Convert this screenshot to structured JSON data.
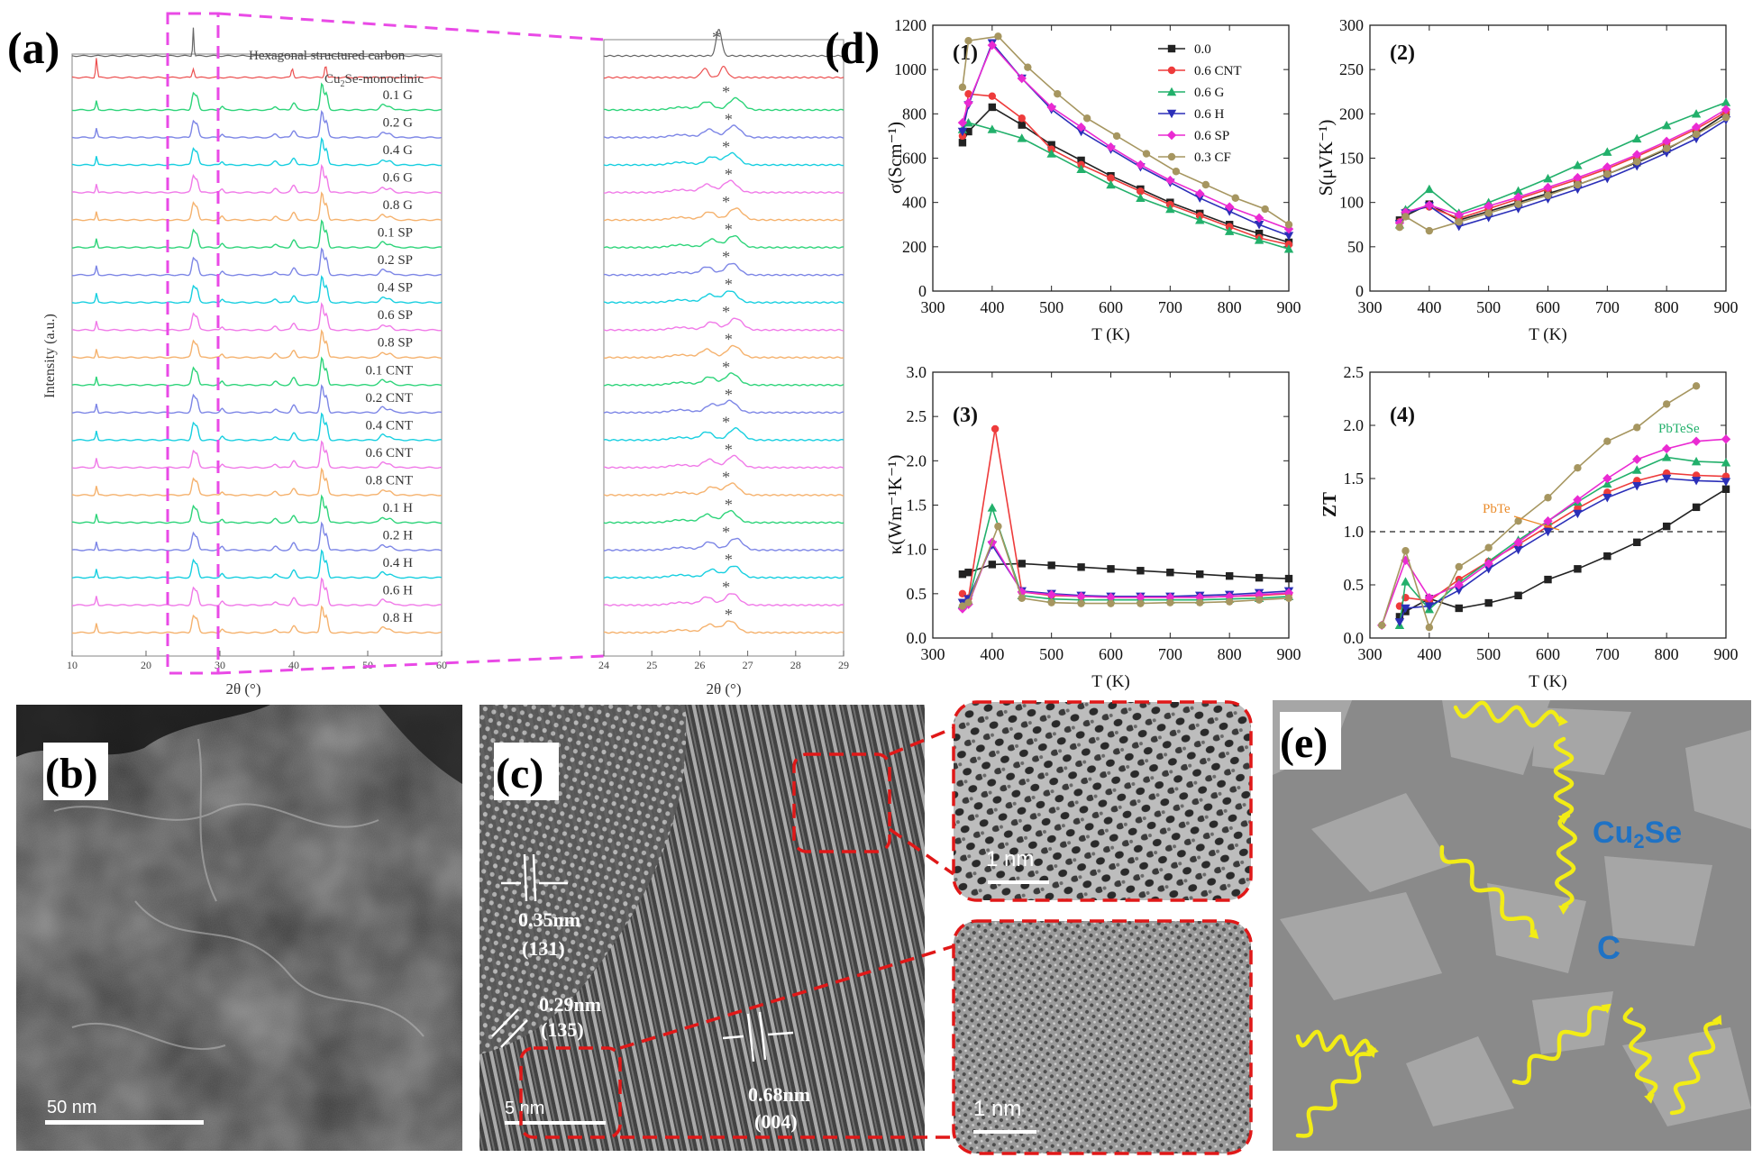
{
  "panel_labels": {
    "a": "(a)",
    "b": "(b)",
    "c": "(c)",
    "d": "(d)",
    "e": "(e)"
  },
  "colors": {
    "G": "#2ed47a",
    "blue": "#7d86e6",
    "cyan": "#18cfe0",
    "pink": "#f07ae8",
    "orange": "#f5b26e",
    "grey": "#8c8c8c",
    "red": "#ec5050",
    "s00": "#222222",
    "sCNT": "#ee3b3b",
    "sG": "#22b06b",
    "sH": "#2b2fb8",
    "sSP": "#ea2ad2",
    "sCF": "#a69660",
    "dash": "#e94ae6",
    "redbox": "#e01818",
    "arrow": "#f2ec16",
    "cu2se": "#1f72c4"
  },
  "xrd": {
    "ylabel": "Intensity (a.u.)",
    "xlabel": "2θ (°)",
    "xlabel_zoom": "2θ (°)",
    "xticks_full": [
      "10",
      "20",
      "30",
      "40",
      "50",
      "60"
    ],
    "xticks_zoom": [
      "24",
      "25",
      "26",
      "27",
      "28",
      "29"
    ],
    "ref_carbon": "Hexagonal structured carbon",
    "ref_cu2se_main": "Cu",
    "ref_cu2se_sub": "2",
    "ref_cu2se_tail": "Se-monoclinic",
    "samples": [
      {
        "label": "0.1 G",
        "color": "G"
      },
      {
        "label": "0.2 G",
        "color": "blue"
      },
      {
        "label": "0.4 G",
        "color": "cyan"
      },
      {
        "label": "0.6 G",
        "color": "pink"
      },
      {
        "label": "0.8 G",
        "color": "orange"
      },
      {
        "label": "0.1 SP",
        "color": "G"
      },
      {
        "label": "0.2 SP",
        "color": "blue"
      },
      {
        "label": "0.4 SP",
        "color": "cyan"
      },
      {
        "label": "0.6 SP",
        "color": "pink"
      },
      {
        "label": "0.8 SP",
        "color": "orange"
      },
      {
        "label": "0.1 CNT",
        "color": "G"
      },
      {
        "label": "0.2 CNT",
        "color": "blue"
      },
      {
        "label": "0.4 CNT",
        "color": "cyan"
      },
      {
        "label": "0.6 CNT",
        "color": "pink"
      },
      {
        "label": "0.8 CNT",
        "color": "orange"
      },
      {
        "label": "0.1 H",
        "color": "G"
      },
      {
        "label": "0.2 H",
        "color": "blue"
      },
      {
        "label": "0.4 H",
        "color": "cyan"
      },
      {
        "label": "0.6 H",
        "color": "pink"
      },
      {
        "label": "0.8 H",
        "color": "orange"
      }
    ],
    "star": "*"
  },
  "chart_data": [
    {
      "type": "line",
      "panel": "(1)",
      "xlabel": "T (K)",
      "ylabel": "σ(Scm⁻¹)",
      "xlim": [
        300,
        900
      ],
      "ylim": [
        0,
        1200
      ],
      "xticks": [
        300,
        400,
        500,
        600,
        700,
        800,
        900
      ],
      "yticks": [
        0,
        200,
        400,
        600,
        800,
        1000,
        1200
      ],
      "series": [
        {
          "name": "0.0",
          "color": "s00",
          "marker": "square",
          "x": [
            350,
            360,
            400,
            450,
            500,
            550,
            600,
            650,
            700,
            750,
            800,
            850,
            900
          ],
          "y": [
            670,
            720,
            830,
            750,
            660,
            590,
            520,
            460,
            400,
            350,
            300,
            260,
            220
          ]
        },
        {
          "name": "0.6 CNT",
          "color": "sCNT",
          "marker": "circle",
          "x": [
            350,
            360,
            400,
            450,
            500,
            550,
            600,
            650,
            700,
            750,
            800,
            850,
            900
          ],
          "y": [
            700,
            890,
            880,
            780,
            640,
            570,
            510,
            450,
            390,
            340,
            290,
            240,
            210
          ]
        },
        {
          "name": "0.6 G",
          "color": "sG",
          "marker": "triangle-up",
          "x": [
            350,
            360,
            400,
            450,
            500,
            550,
            600,
            650,
            700,
            750,
            800,
            850,
            900
          ],
          "y": [
            730,
            760,
            730,
            690,
            620,
            550,
            480,
            420,
            370,
            320,
            270,
            230,
            190
          ]
        },
        {
          "name": "0.6 H",
          "color": "sH",
          "marker": "triangle-down",
          "x": [
            350,
            360,
            400,
            450,
            500,
            550,
            600,
            650,
            700,
            750,
            800,
            850,
            900
          ],
          "y": [
            720,
            840,
            1120,
            960,
            820,
            720,
            640,
            560,
            490,
            420,
            360,
            300,
            250
          ]
        },
        {
          "name": "0.6 SP",
          "color": "sSP",
          "marker": "diamond",
          "x": [
            350,
            360,
            400,
            450,
            500,
            550,
            600,
            650,
            700,
            750,
            800,
            850,
            900
          ],
          "y": [
            760,
            850,
            1110,
            960,
            830,
            740,
            650,
            570,
            500,
            440,
            380,
            330,
            280
          ]
        },
        {
          "name": "0.3 CF",
          "color": "sCF",
          "marker": "circle",
          "x": [
            350,
            360,
            410,
            460,
            510,
            560,
            610,
            660,
            710,
            760,
            810,
            860,
            900
          ],
          "y": [
            920,
            1130,
            1150,
            1010,
            890,
            780,
            700,
            620,
            540,
            480,
            420,
            370,
            300
          ]
        }
      ],
      "legend": "top-right"
    },
    {
      "type": "line",
      "panel": "(2)",
      "xlabel": "T (K)",
      "ylabel": "S(μVK⁻¹)",
      "xlim": [
        300,
        900
      ],
      "ylim": [
        0,
        300
      ],
      "xticks": [
        300,
        400,
        500,
        600,
        700,
        800,
        900
      ],
      "yticks": [
        0,
        50,
        100,
        150,
        200,
        250,
        300
      ],
      "series": [
        {
          "name": "0.0",
          "color": "s00",
          "marker": "square",
          "x": [
            350,
            360,
            400,
            450,
            500,
            550,
            600,
            650,
            700,
            750,
            800,
            850,
            900
          ],
          "y": [
            80,
            85,
            98,
            80,
            90,
            100,
            110,
            120,
            132,
            145,
            160,
            178,
            200
          ]
        },
        {
          "name": "0.6 CNT",
          "color": "sCNT",
          "marker": "circle",
          "x": [
            350,
            360,
            400,
            450,
            500,
            550,
            600,
            650,
            700,
            750,
            800,
            850,
            900
          ],
          "y": [
            78,
            90,
            95,
            82,
            93,
            104,
            115,
            126,
            138,
            152,
            167,
            183,
            202
          ]
        },
        {
          "name": "0.6 G",
          "color": "sG",
          "marker": "triangle-up",
          "x": [
            350,
            360,
            400,
            450,
            500,
            550,
            600,
            650,
            700,
            750,
            800,
            850,
            900
          ],
          "y": [
            75,
            92,
            115,
            88,
            100,
            113,
            127,
            142,
            157,
            172,
            187,
            200,
            213
          ]
        },
        {
          "name": "0.6 H",
          "color": "sH",
          "marker": "triangle-down",
          "x": [
            350,
            360,
            400,
            450,
            500,
            550,
            600,
            650,
            700,
            750,
            800,
            850,
            900
          ],
          "y": [
            76,
            88,
            96,
            73,
            83,
            93,
            104,
            115,
            127,
            141,
            156,
            172,
            193
          ]
        },
        {
          "name": "0.6 SP",
          "color": "sSP",
          "marker": "diamond",
          "x": [
            350,
            360,
            400,
            450,
            500,
            550,
            600,
            650,
            700,
            750,
            800,
            850,
            900
          ],
          "y": [
            77,
            89,
            97,
            86,
            96,
            106,
            117,
            128,
            140,
            154,
            169,
            185,
            205
          ]
        },
        {
          "name": "0.3 CF",
          "color": "sCF",
          "marker": "circle",
          "x": [
            350,
            360,
            400,
            450,
            500,
            550,
            600,
            650,
            700,
            750,
            800,
            850,
            900
          ],
          "y": [
            72,
            84,
            68,
            78,
            88,
            98,
            108,
            120,
            132,
            146,
            161,
            177,
            196
          ]
        }
      ]
    },
    {
      "type": "line",
      "panel": "(3)",
      "xlabel": "T (K)",
      "ylabel": "κ(Wm⁻¹K⁻¹)",
      "xlim": [
        300,
        900
      ],
      "ylim": [
        0,
        3.0
      ],
      "xticks": [
        300,
        400,
        500,
        600,
        700,
        800,
        900
      ],
      "yticks": [
        0.0,
        0.5,
        1.0,
        1.5,
        2.0,
        2.5,
        3.0
      ],
      "series": [
        {
          "name": "0.0",
          "color": "s00",
          "marker": "square",
          "x": [
            350,
            360,
            400,
            450,
            500,
            550,
            600,
            650,
            700,
            750,
            800,
            850,
            900
          ],
          "y": [
            0.72,
            0.74,
            0.83,
            0.84,
            0.82,
            0.8,
            0.78,
            0.76,
            0.74,
            0.72,
            0.7,
            0.68,
            0.67
          ]
        },
        {
          "name": "0.6 CNT",
          "color": "sCNT",
          "marker": "circle",
          "x": [
            350,
            360,
            405,
            450,
            500,
            550,
            600,
            650,
            700,
            750,
            800,
            850,
            900
          ],
          "y": [
            0.5,
            0.45,
            2.36,
            0.52,
            0.48,
            0.47,
            0.46,
            0.46,
            0.46,
            0.46,
            0.47,
            0.48,
            0.5
          ]
        },
        {
          "name": "0.6 G",
          "color": "sG",
          "marker": "triangle-up",
          "x": [
            350,
            360,
            400,
            450,
            500,
            550,
            600,
            650,
            700,
            750,
            800,
            850,
            900
          ],
          "y": [
            0.38,
            0.42,
            1.47,
            0.48,
            0.44,
            0.43,
            0.43,
            0.43,
            0.43,
            0.43,
            0.44,
            0.45,
            0.47
          ]
        },
        {
          "name": "0.6 H",
          "color": "sH",
          "marker": "triangle-down",
          "x": [
            350,
            360,
            400,
            450,
            500,
            550,
            600,
            650,
            700,
            750,
            800,
            850,
            900
          ],
          "y": [
            0.4,
            0.44,
            1.05,
            0.53,
            0.5,
            0.48,
            0.47,
            0.47,
            0.47,
            0.48,
            0.49,
            0.51,
            0.53
          ]
        },
        {
          "name": "0.6 SP",
          "color": "sSP",
          "marker": "diamond",
          "x": [
            350,
            360,
            400,
            450,
            500,
            550,
            600,
            650,
            700,
            750,
            800,
            850,
            900
          ],
          "y": [
            0.33,
            0.38,
            1.08,
            0.52,
            0.49,
            0.47,
            0.46,
            0.46,
            0.46,
            0.46,
            0.47,
            0.49,
            0.51
          ]
        },
        {
          "name": "0.3 CF",
          "color": "sCF",
          "marker": "circle",
          "x": [
            350,
            360,
            410,
            450,
            500,
            550,
            600,
            650,
            700,
            750,
            800,
            850,
            900
          ],
          "y": [
            0.36,
            0.4,
            1.26,
            0.45,
            0.4,
            0.39,
            0.39,
            0.39,
            0.4,
            0.4,
            0.41,
            0.43,
            0.45
          ]
        }
      ]
    },
    {
      "type": "line",
      "panel": "(4)",
      "xlabel": "T (K)",
      "ylabel": "ZT",
      "xlim": [
        300,
        900
      ],
      "ylim": [
        0,
        2.5
      ],
      "xticks": [
        300,
        400,
        500,
        600,
        700,
        800,
        900
      ],
      "yticks": [
        0.0,
        0.5,
        1.0,
        1.5,
        2.0,
        2.5
      ],
      "reference_line": 1.0,
      "annotations": [
        "PbTeSe",
        "PbTe"
      ],
      "series": [
        {
          "name": "0.0",
          "color": "s00",
          "marker": "square",
          "x": [
            350,
            360,
            400,
            450,
            500,
            550,
            600,
            650,
            700,
            750,
            800,
            850,
            900
          ],
          "y": [
            0.2,
            0.25,
            0.37,
            0.28,
            0.33,
            0.4,
            0.55,
            0.65,
            0.77,
            0.9,
            1.05,
            1.23,
            1.4
          ]
        },
        {
          "name": "0.6 CNT",
          "color": "sCNT",
          "marker": "circle",
          "x": [
            350,
            360,
            400,
            450,
            500,
            550,
            600,
            650,
            700,
            750,
            800,
            850,
            900
          ],
          "y": [
            0.3,
            0.38,
            0.35,
            0.55,
            0.72,
            0.88,
            1.05,
            1.22,
            1.37,
            1.48,
            1.55,
            1.53,
            1.52
          ]
        },
        {
          "name": "0.6 G",
          "color": "sG",
          "marker": "triangle-up",
          "x": [
            350,
            360,
            400,
            450,
            500,
            550,
            600,
            650,
            700,
            750,
            800,
            850,
            900
          ],
          "y": [
            0.12,
            0.53,
            0.27,
            0.52,
            0.72,
            0.92,
            1.1,
            1.28,
            1.45,
            1.58,
            1.7,
            1.66,
            1.65
          ]
        },
        {
          "name": "0.6 H",
          "color": "sH",
          "marker": "triangle-down",
          "x": [
            350,
            360,
            400,
            450,
            500,
            550,
            600,
            650,
            700,
            750,
            800,
            850,
            900
          ],
          "y": [
            0.15,
            0.28,
            0.3,
            0.45,
            0.65,
            0.83,
            1.0,
            1.17,
            1.32,
            1.43,
            1.5,
            1.48,
            1.47
          ]
        },
        {
          "name": "0.6 SP",
          "color": "sSP",
          "marker": "diamond",
          "x": [
            320,
            360,
            400,
            450,
            500,
            550,
            600,
            650,
            700,
            750,
            800,
            850,
            900
          ],
          "y": [
            0.12,
            0.73,
            0.38,
            0.5,
            0.7,
            0.9,
            1.1,
            1.3,
            1.5,
            1.68,
            1.78,
            1.85,
            1.87
          ]
        },
        {
          "name": "0.3 CF",
          "color": "sCF",
          "marker": "circle",
          "x": [
            320,
            360,
            400,
            450,
            500,
            550,
            600,
            650,
            700,
            750,
            800,
            850
          ],
          "y": [
            0.12,
            0.82,
            0.1,
            0.67,
            0.85,
            1.1,
            1.32,
            1.6,
            1.85,
            1.98,
            2.2,
            2.37
          ]
        }
      ]
    }
  ],
  "tem": {
    "b_scale": "50 nm",
    "c_scale": "5 nm",
    "c_spacing1": "0.35nm",
    "c_plane1": "(131)",
    "c_spacing2": "0.29nm",
    "c_plane2": "(135)",
    "c_spacing3": "0.68nm",
    "c_plane3": "(004)",
    "inset_top_scale": "1 nm",
    "inset_bot_scale": "1 nm"
  },
  "schematic": {
    "label_cu2se_main": "Cu",
    "label_cu2se_sub": "2",
    "label_cu2se_tail": "Se",
    "label_c": "C"
  }
}
